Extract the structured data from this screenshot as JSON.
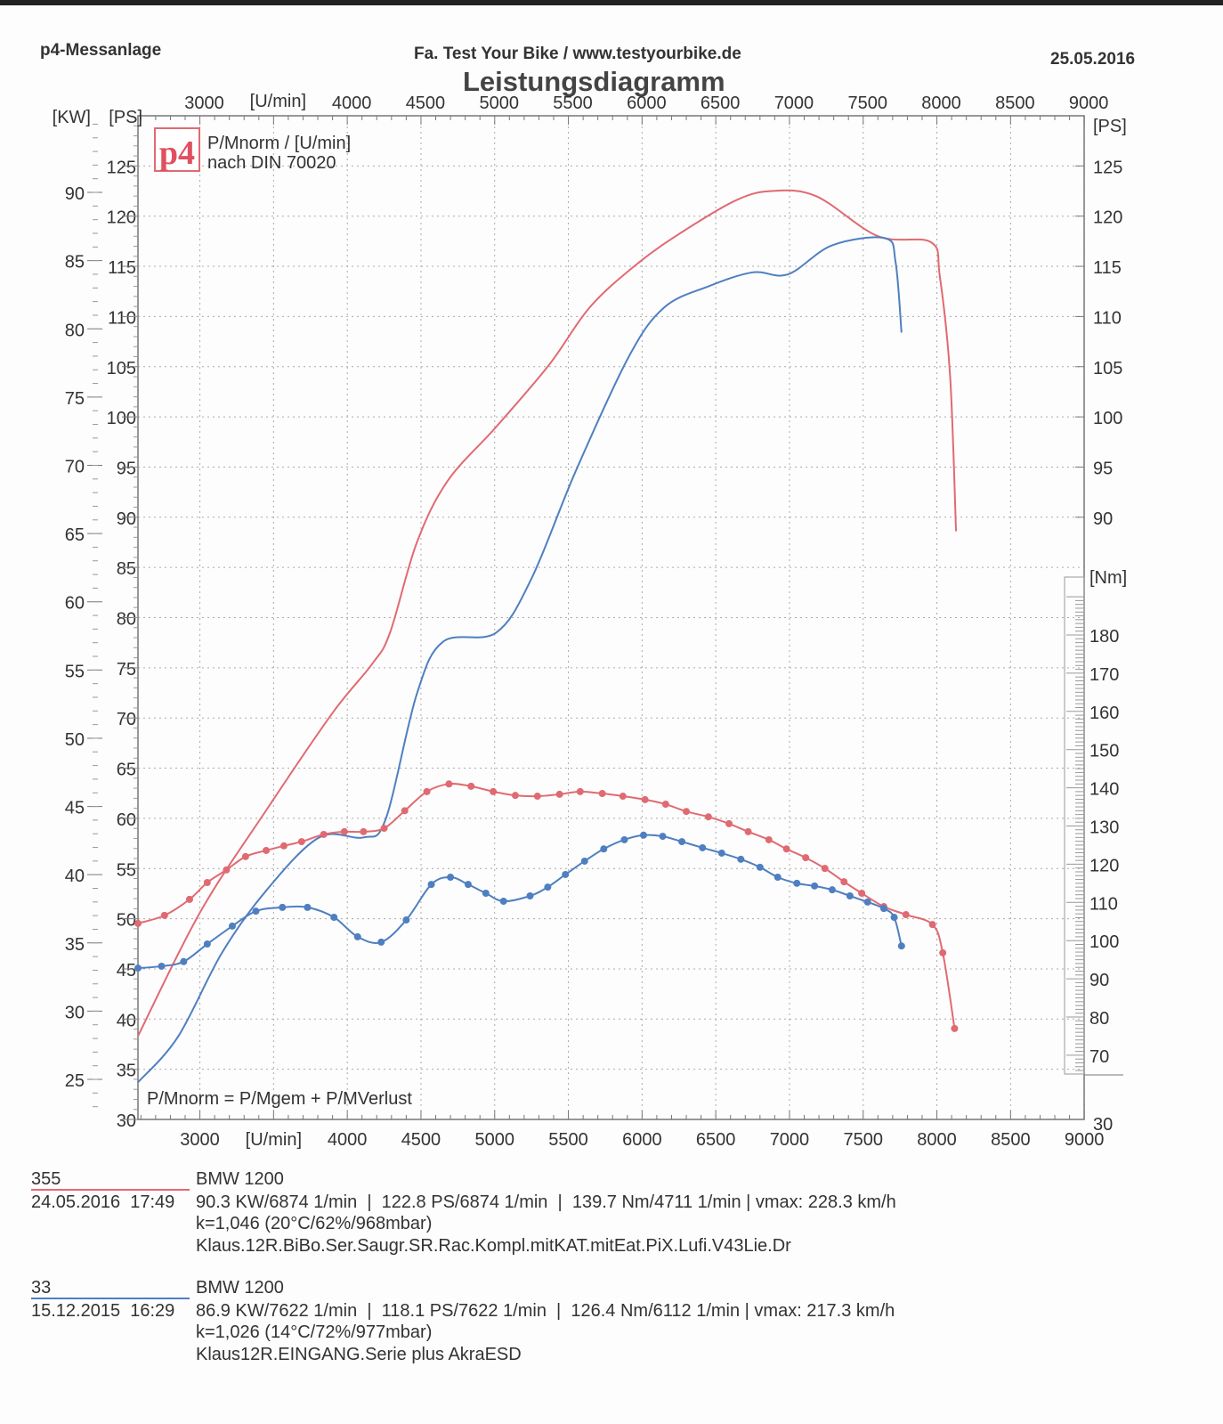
{
  "header": {
    "left": "p4-Messanlage",
    "center": "Fa. Test Your Bike / www.testyourbike.de",
    "date": "25.05.2016",
    "title": "Leistungsdiagramm"
  },
  "legend": {
    "logo": "p4",
    "line1": "P/Mnorm / [U/min]",
    "line2": "nach DIN 70020",
    "formula": "P/Mnorm = P/Mgem + P/MVerlust"
  },
  "colors": {
    "run_2016": "#e06a72",
    "run_2015": "#4f7fc0",
    "grid": "#999999"
  },
  "chart_data": {
    "type": "line",
    "title": "Leistungsdiagramm",
    "xlabel": "[U/min]",
    "x_ticks": [
      3000,
      4000,
      4500,
      5000,
      5500,
      6000,
      6500,
      7000,
      7500,
      8000,
      8500,
      9000
    ],
    "xlim": [
      2580,
      9000
    ],
    "y_left_kw": {
      "label": "[KW]",
      "ticks": [
        25,
        30,
        35,
        40,
        45,
        50,
        55,
        60,
        65,
        70,
        75,
        80,
        85,
        90
      ]
    },
    "y_left_ps": {
      "label": "[PS]",
      "ticks": [
        30,
        35,
        40,
        45,
        50,
        55,
        60,
        65,
        70,
        75,
        80,
        85,
        90,
        95,
        100,
        105,
        110,
        115,
        120,
        125
      ],
      "ylim": [
        30,
        130
      ]
    },
    "y_right_ps": {
      "label": "[PS]",
      "ticks": [
        30,
        90,
        95,
        100,
        105,
        110,
        115,
        120,
        125
      ]
    },
    "y_right_nm": {
      "label": "[Nm]",
      "ticks": [
        70,
        80,
        90,
        100,
        110,
        120,
        130,
        140,
        150,
        160,
        170,
        180
      ]
    },
    "grid": true,
    "series": [
      {
        "name": "355 Power (PS)",
        "color": "#e06a72",
        "axis": "ps",
        "x": [
          2580,
          3000,
          3450,
          3900,
          4170,
          4290,
          4470,
          4680,
          5010,
          5370,
          5650,
          5980,
          6280,
          6640,
          6880,
          7180,
          7600,
          7960,
          8020,
          8090,
          8130
        ],
        "y": [
          38.3,
          50.6,
          60.8,
          70.5,
          75.4,
          78.5,
          87.4,
          93.6,
          99,
          105.2,
          111,
          115.4,
          118.5,
          121.6,
          122.5,
          122,
          118,
          117.4,
          114,
          104,
          88.6
        ]
      },
      {
        "name": "33 Power (PS)",
        "color": "#4f7fc0",
        "axis": "ps",
        "x": [
          2580,
          2850,
          3150,
          3450,
          3810,
          4110,
          4260,
          4470,
          4650,
          5010,
          5250,
          5550,
          5910,
          6150,
          6450,
          6750,
          6990,
          7290,
          7650,
          7720,
          7760
        ],
        "y": [
          33.7,
          38.2,
          46.6,
          52.8,
          58.1,
          58.1,
          59.9,
          72.3,
          77.6,
          78.5,
          83.9,
          94.6,
          106,
          110.9,
          113,
          114.4,
          114.2,
          117.1,
          117.8,
          115.4,
          108.4
        ]
      },
      {
        "name": "355 Torque (Nm)",
        "color": "#e06a72",
        "axis": "nm",
        "markers": true,
        "x": [
          2580,
          2760,
          2930,
          3050,
          3180,
          3310,
          3450,
          3570,
          3690,
          3840,
          3980,
          4110,
          4250,
          4390,
          4540,
          4690,
          4840,
          4990,
          5140,
          5290,
          5440,
          5580,
          5730,
          5870,
          6020,
          6160,
          6300,
          6450,
          6590,
          6720,
          6860,
          6980,
          7110,
          7240,
          7370,
          7490,
          7640,
          7790,
          7970,
          8040,
          8120
        ],
        "y": [
          104.5,
          106.6,
          110.8,
          115.2,
          118.5,
          122,
          123.6,
          124.8,
          125.9,
          127.8,
          128.5,
          128.5,
          129.4,
          134,
          139,
          141,
          140.4,
          139,
          138,
          137.8,
          138.3,
          139,
          138.5,
          137.8,
          136.9,
          135.7,
          133.8,
          132.4,
          130.6,
          128.5,
          126.4,
          124,
          121.7,
          118.9,
          115.4,
          112.4,
          108.9,
          106.8,
          104.2,
          96.8,
          77
        ]
      },
      {
        "name": "33 Torque (Nm)",
        "color": "#4f7fc0",
        "axis": "nm",
        "markers": true,
        "x": [
          2580,
          2740,
          2890,
          3050,
          3220,
          3380,
          3560,
          3730,
          3910,
          4070,
          4230,
          4400,
          4570,
          4700,
          4820,
          4940,
          5060,
          5240,
          5360,
          5480,
          5610,
          5740,
          5880,
          6010,
          6140,
          6270,
          6410,
          6540,
          6670,
          6800,
          6920,
          7050,
          7170,
          7290,
          7410,
          7530,
          7640,
          7710,
          7760
        ],
        "y": [
          92.8,
          93.3,
          94.5,
          99.1,
          103.8,
          107.7,
          108.7,
          108.7,
          106.1,
          101,
          99.6,
          105.4,
          114.7,
          116.6,
          114.7,
          112.4,
          110.3,
          111.7,
          114,
          117.3,
          120.8,
          124,
          126.4,
          127.6,
          127.3,
          125.9,
          124.3,
          122.9,
          121.3,
          119.2,
          116.6,
          115,
          114.3,
          113.3,
          111.7,
          110.1,
          108.4,
          106.1,
          98.6
        ]
      }
    ]
  },
  "runs": [
    {
      "id": "355",
      "vehicle": "BMW 1200",
      "datetime": "24.05.2016  17:49",
      "summary": "90.3 KW/6874 1/min  |  122.8 PS/6874 1/min  |  139.7 Nm/4711 1/min | vmax: 228.3 km/h",
      "conditions": "k=1,046 (20°C/62%/968mbar)",
      "description": "Klaus.12R.BiBo.Ser.Saugr.SR.Rac.Kompl.mitKAT.mitEat.PiX.Lufi.V43Lie.Dr"
    },
    {
      "id": "33",
      "vehicle": "BMW 1200",
      "datetime": "15.12.2015  16:29",
      "summary": "86.9 KW/7622 1/min  |  118.1 PS/7622 1/min  |  126.4 Nm/6112 1/min | vmax: 217.3 km/h",
      "conditions": "k=1,026 (14°C/72%/977mbar)",
      "description": "Klaus12R.EINGANG.Serie plus AkraESD"
    }
  ]
}
